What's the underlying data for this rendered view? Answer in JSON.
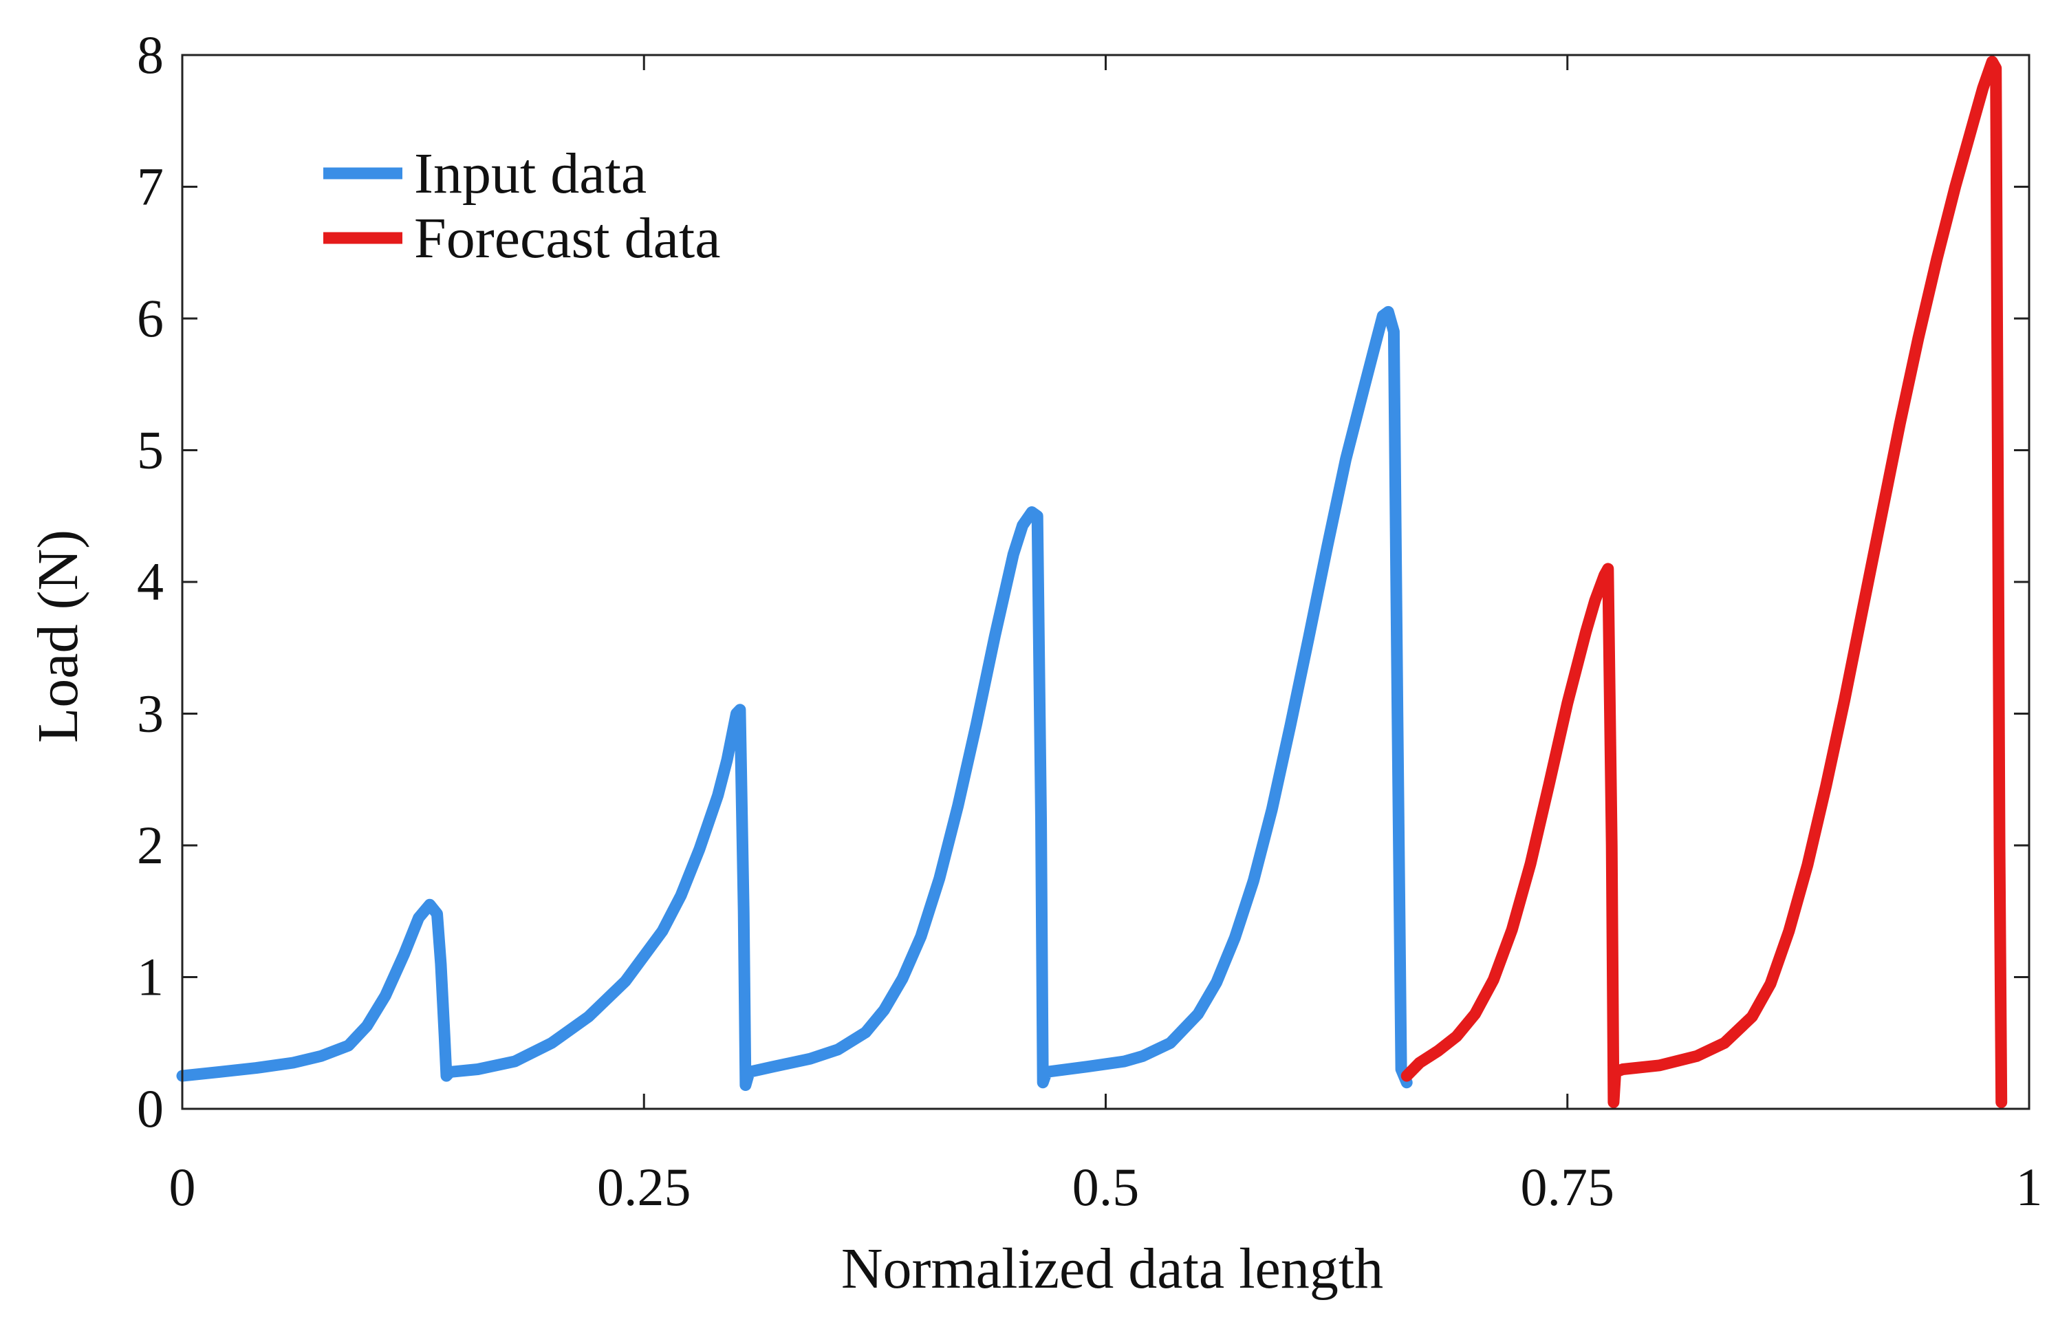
{
  "chart_data": {
    "type": "line",
    "title": "",
    "xlabel": "Normalized data length",
    "ylabel": "Load (N)",
    "xlim": [
      0,
      1
    ],
    "ylim": [
      0,
      8
    ],
    "grid": false,
    "legend_position": "top-left",
    "x_ticks": [
      {
        "value": 0,
        "label": "0"
      },
      {
        "value": 0.25,
        "label": "0.25"
      },
      {
        "value": 0.5,
        "label": "0.5"
      },
      {
        "value": 0.75,
        "label": "0.75"
      },
      {
        "value": 1,
        "label": "1"
      }
    ],
    "y_ticks": [
      {
        "value": 0,
        "label": "0"
      },
      {
        "value": 1,
        "label": "1"
      },
      {
        "value": 2,
        "label": "2"
      },
      {
        "value": 3,
        "label": "3"
      },
      {
        "value": 4,
        "label": "4"
      },
      {
        "value": 5,
        "label": "5"
      },
      {
        "value": 6,
        "label": "6"
      },
      {
        "value": 7,
        "label": "7"
      },
      {
        "value": 8,
        "label": "8"
      }
    ],
    "series": [
      {
        "name": "Input data",
        "color": "#3a8ee6",
        "x": [
          0,
          0.02,
          0.04,
          0.06,
          0.075,
          0.09,
          0.1,
          0.11,
          0.12,
          0.128,
          0.134,
          0.138,
          0.14,
          0.142,
          0.143,
          0.145,
          0.16,
          0.18,
          0.2,
          0.22,
          0.24,
          0.26,
          0.27,
          0.28,
          0.29,
          0.295,
          0.3,
          0.302,
          0.304,
          0.305,
          0.307,
          0.32,
          0.34,
          0.355,
          0.37,
          0.38,
          0.39,
          0.4,
          0.41,
          0.42,
          0.43,
          0.44,
          0.45,
          0.455,
          0.46,
          0.463,
          0.465,
          0.466,
          0.468,
          0.49,
          0.51,
          0.52,
          0.535,
          0.55,
          0.56,
          0.57,
          0.58,
          0.59,
          0.6,
          0.61,
          0.62,
          0.63,
          0.64,
          0.645,
          0.65,
          0.653,
          0.656,
          0.658,
          0.66,
          0.663
        ],
        "y": [
          0.25,
          0.28,
          0.31,
          0.35,
          0.4,
          0.48,
          0.63,
          0.86,
          1.17,
          1.45,
          1.55,
          1.48,
          1.1,
          0.55,
          0.25,
          0.28,
          0.3,
          0.36,
          0.5,
          0.7,
          0.97,
          1.35,
          1.62,
          1.97,
          2.38,
          2.65,
          3.0,
          3.03,
          1.5,
          0.18,
          0.28,
          0.32,
          0.38,
          0.45,
          0.58,
          0.75,
          0.99,
          1.31,
          1.75,
          2.3,
          2.92,
          3.59,
          4.21,
          4.43,
          4.53,
          4.5,
          2.2,
          0.2,
          0.28,
          0.32,
          0.36,
          0.4,
          0.5,
          0.72,
          0.96,
          1.3,
          1.73,
          2.27,
          2.91,
          3.58,
          4.27,
          4.93,
          5.48,
          5.75,
          6.02,
          6.05,
          5.9,
          3.0,
          0.3,
          0.2
        ]
      },
      {
        "name": "Forecast data",
        "color": "#e51b1b",
        "x": [
          0.663,
          0.67,
          0.68,
          0.69,
          0.7,
          0.71,
          0.72,
          0.73,
          0.74,
          0.75,
          0.76,
          0.765,
          0.77,
          0.772,
          0.774,
          0.775,
          0.776,
          0.78,
          0.8,
          0.82,
          0.835,
          0.85,
          0.86,
          0.87,
          0.88,
          0.89,
          0.9,
          0.91,
          0.92,
          0.93,
          0.94,
          0.95,
          0.96,
          0.97,
          0.975,
          0.98,
          0.982,
          0.983,
          0.984,
          0.985
        ],
        "y": [
          0.25,
          0.35,
          0.44,
          0.55,
          0.72,
          0.98,
          1.36,
          1.86,
          2.46,
          3.08,
          3.62,
          3.86,
          4.05,
          4.1,
          2.0,
          0.05,
          0.28,
          0.3,
          0.33,
          0.4,
          0.5,
          0.7,
          0.95,
          1.35,
          1.85,
          2.45,
          3.1,
          3.8,
          4.5,
          5.2,
          5.85,
          6.45,
          7.0,
          7.5,
          7.75,
          7.95,
          7.9,
          5.0,
          2.0,
          0.05
        ]
      }
    ]
  }
}
